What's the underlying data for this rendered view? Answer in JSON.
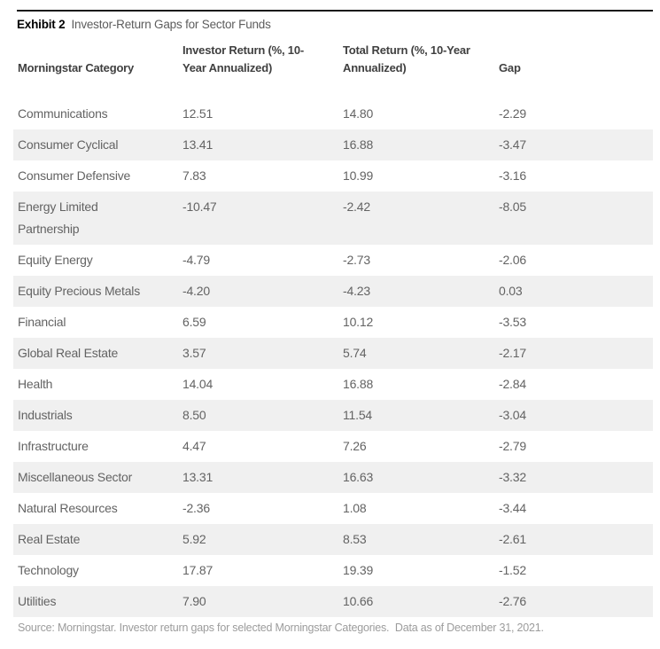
{
  "header": {
    "exhibit_label": "Exhibit 2",
    "exhibit_title": "Investor-Return Gaps for Sector Funds",
    "column_labels": [
      "Morningstar Category",
      "Investor Return (%, 10-\nYear Annualized)",
      "Total Return (%, 10-Year\nAnnualized)",
      "Gap"
    ]
  },
  "footer": {
    "source": "Source: Morningstar. Investor return gaps for selected Morningstar Categories.  Data as of December 31, 2021."
  },
  "colors": {
    "top_rule": "#1a1a1a",
    "stripe": "#f0f0f0",
    "header_text": "#404040",
    "body_text": "#636363",
    "source_text": "#9c9c9c"
  },
  "chart_data": {
    "type": "table",
    "title": "Exhibit 2 Investor-Return Gaps for Sector Funds",
    "columns": [
      "Morningstar Category",
      "Investor Return (%, 10-Year Annualized)",
      "Total Return (%, 10-Year Annualized)",
      "Gap"
    ],
    "rows": [
      {
        "category": "Communications",
        "investor_return": "12.51",
        "total_return": "14.80",
        "gap": "-2.29"
      },
      {
        "category": "Consumer Cyclical",
        "investor_return": "13.41",
        "total_return": "16.88",
        "gap": "-3.47"
      },
      {
        "category": "Consumer Defensive",
        "investor_return": "7.83",
        "total_return": "10.99",
        "gap": "-3.16"
      },
      {
        "category": "Energy Limited\nPartnership",
        "investor_return": "-10.47",
        "total_return": "-2.42",
        "gap": "-8.05"
      },
      {
        "category": "Equity Energy",
        "investor_return": "-4.79",
        "total_return": "-2.73",
        "gap": "-2.06"
      },
      {
        "category": "Equity Precious Metals",
        "investor_return": "-4.20",
        "total_return": "-4.23",
        "gap": "0.03"
      },
      {
        "category": "Financial",
        "investor_return": "6.59",
        "total_return": "10.12",
        "gap": "-3.53"
      },
      {
        "category": "Global Real Estate",
        "investor_return": "3.57",
        "total_return": "5.74",
        "gap": "-2.17"
      },
      {
        "category": "Health",
        "investor_return": "14.04",
        "total_return": "16.88",
        "gap": "-2.84"
      },
      {
        "category": "Industrials",
        "investor_return": "8.50",
        "total_return": "11.54",
        "gap": "-3.04"
      },
      {
        "category": "Infrastructure",
        "investor_return": "4.47",
        "total_return": "7.26",
        "gap": "-2.79"
      },
      {
        "category": "Miscellaneous Sector",
        "investor_return": "13.31",
        "total_return": "16.63",
        "gap": "-3.32"
      },
      {
        "category": "Natural Resources",
        "investor_return": "-2.36",
        "total_return": "1.08",
        "gap": "-3.44"
      },
      {
        "category": "Real Estate",
        "investor_return": "5.92",
        "total_return": "8.53",
        "gap": "-2.61"
      },
      {
        "category": "Technology",
        "investor_return": "17.87",
        "total_return": "19.39",
        "gap": "-1.52"
      },
      {
        "category": "Utilities",
        "investor_return": "7.90",
        "total_return": "10.66",
        "gap": "-2.76"
      }
    ],
    "source": "Source: Morningstar. Investor return gaps for selected Morningstar Categories. Data as of December 31, 2021."
  }
}
